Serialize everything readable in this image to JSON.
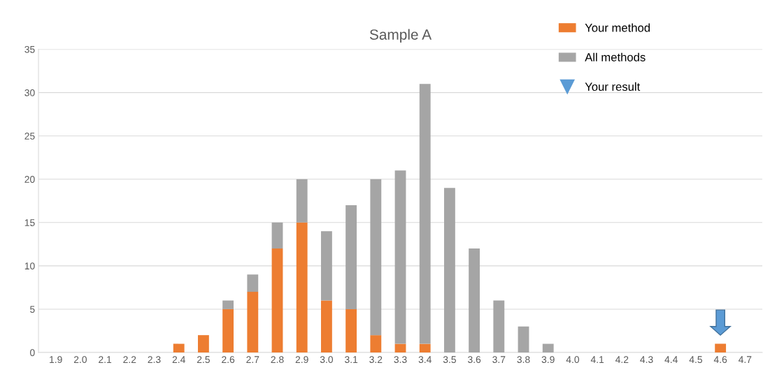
{
  "chart_data": {
    "type": "bar",
    "title": "Sample A",
    "stacked": true,
    "categories": [
      "1.9",
      "2.0",
      "2.1",
      "2.2",
      "2.3",
      "2.4",
      "2.5",
      "2.6",
      "2.7",
      "2.8",
      "2.9",
      "3.0",
      "3.1",
      "3.2",
      "3.3",
      "3.4",
      "3.5",
      "3.6",
      "3.7",
      "3.8",
      "3.9",
      "4.0",
      "4.1",
      "4.2",
      "4.3",
      "4.4",
      "4.5",
      "4.6",
      "4.7"
    ],
    "series": [
      {
        "name": "Your method",
        "color": "#ed7d31",
        "values": [
          0,
          0,
          0,
          0,
          0,
          1,
          2,
          5,
          7,
          12,
          15,
          6,
          5,
          2,
          1,
          1,
          0,
          0,
          0,
          0,
          0,
          0,
          0,
          0,
          0,
          0,
          0,
          1,
          0
        ]
      },
      {
        "name": "All methods",
        "color": "#a5a5a5",
        "values": [
          0,
          0,
          0,
          0,
          0,
          0,
          0,
          1,
          2,
          3,
          5,
          8,
          12,
          18,
          20,
          30,
          19,
          12,
          6,
          3,
          1,
          0,
          0,
          0,
          0,
          0,
          0,
          0,
          0
        ]
      }
    ],
    "annotations": [
      "Your result"
    ],
    "ylim": [
      0,
      35
    ],
    "yticks": [
      0,
      5,
      10,
      15,
      20,
      25,
      30,
      35
    ],
    "grid": "y",
    "legend": "top right"
  }
}
